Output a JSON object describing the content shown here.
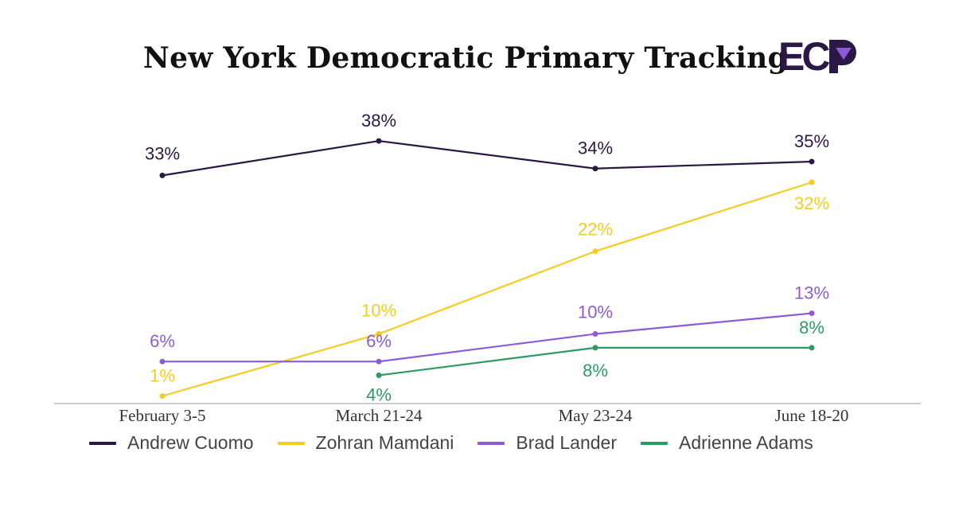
{
  "title": "New York Democratic Primary Tracking",
  "logo_text": "ECP",
  "chart_data": {
    "type": "line",
    "title": "New York Democratic Primary Tracking",
    "categories": [
      "February 3-5",
      "March 21-24",
      "May 23-24",
      "June 18-20"
    ],
    "series": [
      {
        "name": "Andrew Cuomo",
        "color": "#2a1846",
        "values": [
          33,
          38,
          34,
          35
        ],
        "labels": [
          "33%",
          "38%",
          "34%",
          "35%"
        ]
      },
      {
        "name": "Zohran Mamdani",
        "color": "#f5cc22",
        "values": [
          1,
          10,
          22,
          32
        ],
        "labels": [
          "1%",
          "10%",
          "22%",
          "32%"
        ]
      },
      {
        "name": "Brad Lander",
        "color": "#8d5bd8",
        "values": [
          6,
          6,
          10,
          13
        ],
        "labels": [
          "6%",
          "6%",
          "10%",
          "13%"
        ]
      },
      {
        "name": "Adrienne Adams",
        "color": "#2e9a64",
        "values": [
          null,
          4,
          8,
          8
        ],
        "labels": [
          null,
          "4%",
          "8%",
          "8%"
        ]
      }
    ],
    "legend_position": "bottom",
    "grid": false,
    "ylim": [
      0,
      40
    ]
  },
  "colors": {
    "logo": "#2a1846",
    "logo_accent": "#8d5bd8",
    "axis": "#bbbbbb"
  }
}
